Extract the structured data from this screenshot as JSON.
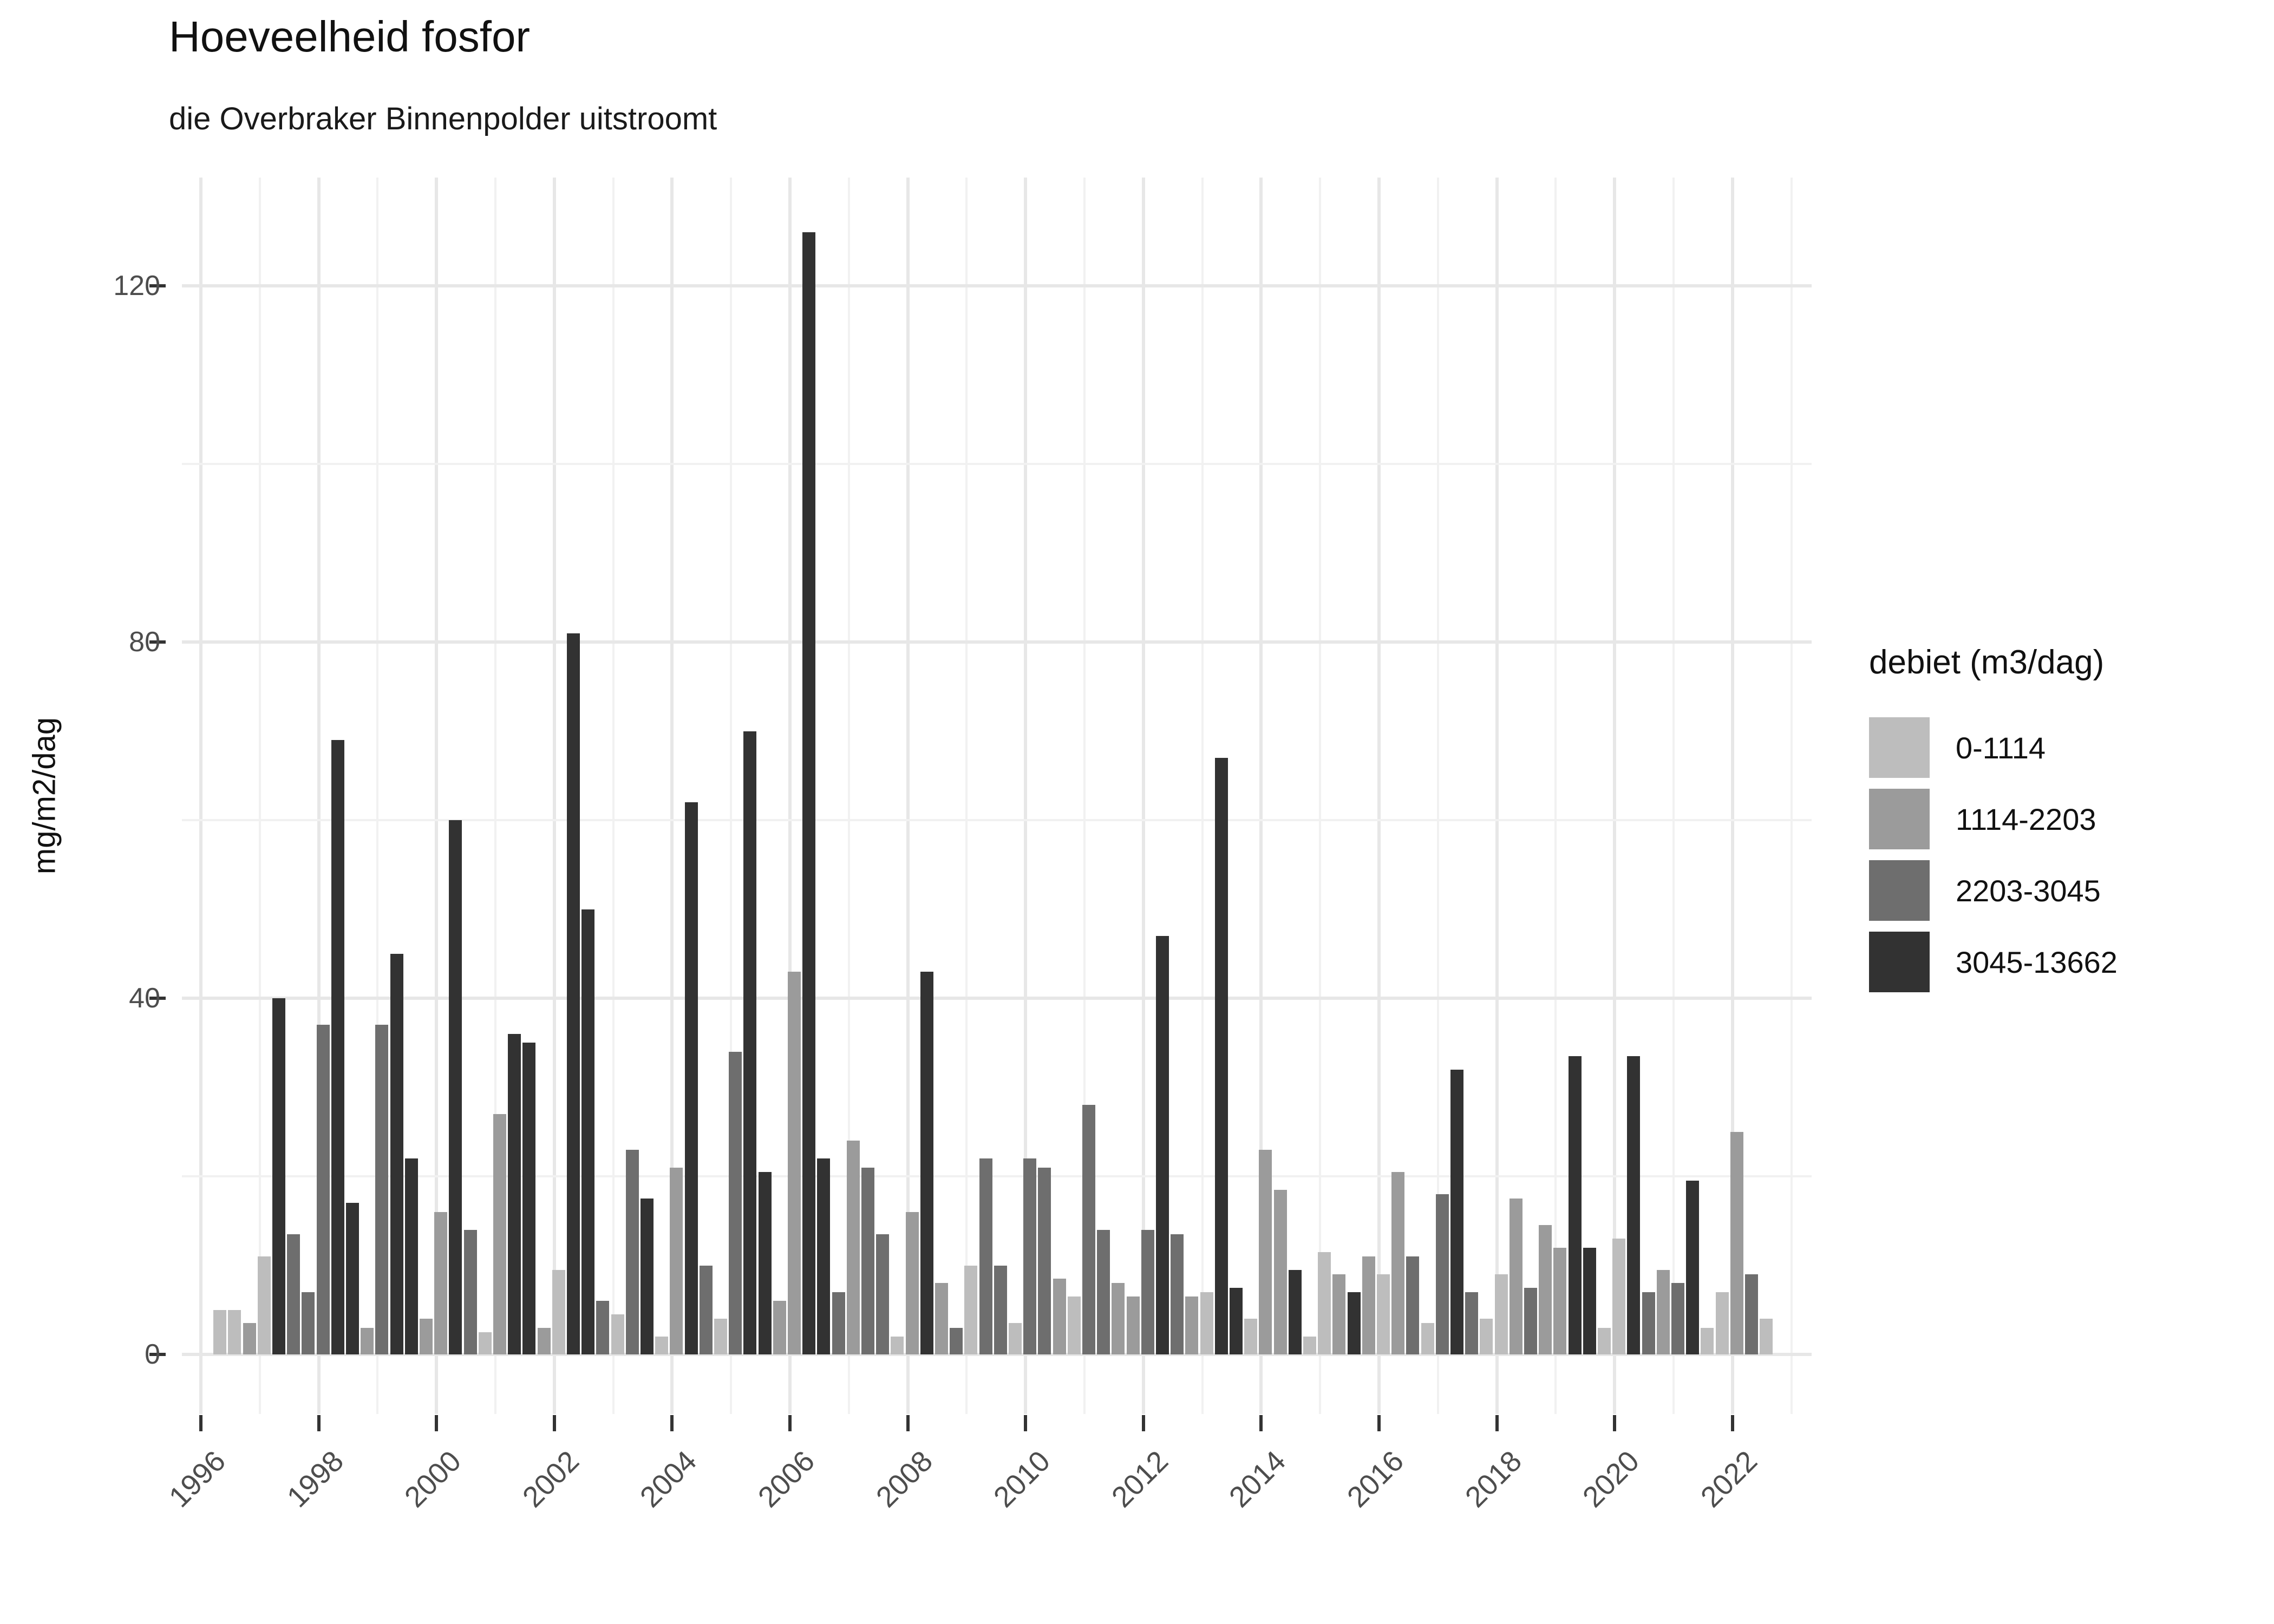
{
  "title": "Hoeveelheid fosfor",
  "subtitle": "die Overbraker Binnenpolder uitstroomt",
  "chart_data": {
    "type": "bar",
    "title": "Hoeveelheid fosfor",
    "subtitle": "die Overbraker Binnenpolder uitstroomt",
    "ylabel": "mg/m2/dag",
    "xlabel": "",
    "ylim": [
      0,
      132
    ],
    "yticks": [
      0,
      40,
      80,
      120
    ],
    "y_minor_gridlines": [
      20,
      60,
      100
    ],
    "xticks": [
      1996,
      1998,
      2000,
      2002,
      2004,
      2006,
      2008,
      2010,
      2012,
      2014,
      2016,
      2018,
      2020,
      2022
    ],
    "x_gridline_years_start": 1996,
    "x_gridline_years_end": 2023,
    "grid": "on",
    "legend_position": "right",
    "legend": {
      "title": "debiet (m3/dag)",
      "entries": [
        {
          "label": "0-1114",
          "color": "#bdbdbd"
        },
        {
          "label": "1114-2203",
          "color": "#9b9b9b"
        },
        {
          "label": "2203-3045",
          "color": "#6e6e6e"
        },
        {
          "label": "3045-13662",
          "color": "#323232"
        }
      ]
    },
    "value_unit": "mg/m2/dag",
    "bars_note": "one bar per quarter; debiet_class is an index into legend.entries",
    "bars": [
      {
        "year": 1996,
        "quarter": 2,
        "value": 5,
        "debiet_class": 0
      },
      {
        "year": 1996,
        "quarter": 3,
        "value": 5,
        "debiet_class": 0
      },
      {
        "year": 1996,
        "quarter": 4,
        "value": 3.5,
        "debiet_class": 1
      },
      {
        "year": 1997,
        "quarter": 1,
        "value": 11,
        "debiet_class": 0
      },
      {
        "year": 1997,
        "quarter": 2,
        "value": 40,
        "debiet_class": 3
      },
      {
        "year": 1997,
        "quarter": 3,
        "value": 13.5,
        "debiet_class": 2
      },
      {
        "year": 1997,
        "quarter": 4,
        "value": 7,
        "debiet_class": 2
      },
      {
        "year": 1998,
        "quarter": 1,
        "value": 37,
        "debiet_class": 2
      },
      {
        "year": 1998,
        "quarter": 2,
        "value": 69,
        "debiet_class": 3
      },
      {
        "year": 1998,
        "quarter": 3,
        "value": 17,
        "debiet_class": 3
      },
      {
        "year": 1998,
        "quarter": 4,
        "value": 3,
        "debiet_class": 1
      },
      {
        "year": 1999,
        "quarter": 1,
        "value": 37,
        "debiet_class": 2
      },
      {
        "year": 1999,
        "quarter": 2,
        "value": 45,
        "debiet_class": 3
      },
      {
        "year": 1999,
        "quarter": 3,
        "value": 22,
        "debiet_class": 3
      },
      {
        "year": 1999,
        "quarter": 4,
        "value": 4,
        "debiet_class": 1
      },
      {
        "year": 2000,
        "quarter": 1,
        "value": 16,
        "debiet_class": 1
      },
      {
        "year": 2000,
        "quarter": 2,
        "value": 60,
        "debiet_class": 3
      },
      {
        "year": 2000,
        "quarter": 3,
        "value": 14,
        "debiet_class": 2
      },
      {
        "year": 2000,
        "quarter": 4,
        "value": 2.5,
        "debiet_class": 0
      },
      {
        "year": 2001,
        "quarter": 1,
        "value": 27,
        "debiet_class": 1
      },
      {
        "year": 2001,
        "quarter": 2,
        "value": 36,
        "debiet_class": 3
      },
      {
        "year": 2001,
        "quarter": 3,
        "value": 35,
        "debiet_class": 3
      },
      {
        "year": 2001,
        "quarter": 4,
        "value": 3,
        "debiet_class": 1
      },
      {
        "year": 2002,
        "quarter": 1,
        "value": 9.5,
        "debiet_class": 0
      },
      {
        "year": 2002,
        "quarter": 2,
        "value": 81,
        "debiet_class": 3
      },
      {
        "year": 2002,
        "quarter": 3,
        "value": 50,
        "debiet_class": 3
      },
      {
        "year": 2002,
        "quarter": 4,
        "value": 6,
        "debiet_class": 2
      },
      {
        "year": 2003,
        "quarter": 1,
        "value": 4.5,
        "debiet_class": 0
      },
      {
        "year": 2003,
        "quarter": 2,
        "value": 23,
        "debiet_class": 2
      },
      {
        "year": 2003,
        "quarter": 3,
        "value": 17.5,
        "debiet_class": 3
      },
      {
        "year": 2003,
        "quarter": 4,
        "value": 2,
        "debiet_class": 0
      },
      {
        "year": 2004,
        "quarter": 1,
        "value": 21,
        "debiet_class": 1
      },
      {
        "year": 2004,
        "quarter": 2,
        "value": 62,
        "debiet_class": 3
      },
      {
        "year": 2004,
        "quarter": 3,
        "value": 10,
        "debiet_class": 2
      },
      {
        "year": 2004,
        "quarter": 4,
        "value": 4,
        "debiet_class": 0
      },
      {
        "year": 2005,
        "quarter": 1,
        "value": 34,
        "debiet_class": 2
      },
      {
        "year": 2005,
        "quarter": 2,
        "value": 70,
        "debiet_class": 3
      },
      {
        "year": 2005,
        "quarter": 3,
        "value": 20.5,
        "debiet_class": 3
      },
      {
        "year": 2005,
        "quarter": 4,
        "value": 6,
        "debiet_class": 1
      },
      {
        "year": 2006,
        "quarter": 1,
        "value": 43,
        "debiet_class": 1
      },
      {
        "year": 2006,
        "quarter": 2,
        "value": 126,
        "debiet_class": 3
      },
      {
        "year": 2006,
        "quarter": 3,
        "value": 22,
        "debiet_class": 3
      },
      {
        "year": 2006,
        "quarter": 4,
        "value": 7,
        "debiet_class": 2
      },
      {
        "year": 2007,
        "quarter": 1,
        "value": 24,
        "debiet_class": 1
      },
      {
        "year": 2007,
        "quarter": 2,
        "value": 21,
        "debiet_class": 2
      },
      {
        "year": 2007,
        "quarter": 3,
        "value": 13.5,
        "debiet_class": 2
      },
      {
        "year": 2007,
        "quarter": 4,
        "value": 2,
        "debiet_class": 0
      },
      {
        "year": 2008,
        "quarter": 1,
        "value": 16,
        "debiet_class": 1
      },
      {
        "year": 2008,
        "quarter": 2,
        "value": 43,
        "debiet_class": 3
      },
      {
        "year": 2008,
        "quarter": 3,
        "value": 8,
        "debiet_class": 1
      },
      {
        "year": 2008,
        "quarter": 4,
        "value": 3,
        "debiet_class": 2
      },
      {
        "year": 2009,
        "quarter": 1,
        "value": 10,
        "debiet_class": 0
      },
      {
        "year": 2009,
        "quarter": 2,
        "value": 22,
        "debiet_class": 2
      },
      {
        "year": 2009,
        "quarter": 3,
        "value": 10,
        "debiet_class": 2
      },
      {
        "year": 2009,
        "quarter": 4,
        "value": 3.5,
        "debiet_class": 0
      },
      {
        "year": 2010,
        "quarter": 1,
        "value": 22,
        "debiet_class": 2
      },
      {
        "year": 2010,
        "quarter": 2,
        "value": 21,
        "debiet_class": 2
      },
      {
        "year": 2010,
        "quarter": 3,
        "value": 8.5,
        "debiet_class": 1
      },
      {
        "year": 2010,
        "quarter": 4,
        "value": 6.5,
        "debiet_class": 0
      },
      {
        "year": 2011,
        "quarter": 1,
        "value": 28,
        "debiet_class": 2
      },
      {
        "year": 2011,
        "quarter": 2,
        "value": 14,
        "debiet_class": 2
      },
      {
        "year": 2011,
        "quarter": 3,
        "value": 8,
        "debiet_class": 1
      },
      {
        "year": 2011,
        "quarter": 4,
        "value": 6.5,
        "debiet_class": 1
      },
      {
        "year": 2012,
        "quarter": 1,
        "value": 14,
        "debiet_class": 2
      },
      {
        "year": 2012,
        "quarter": 2,
        "value": 47,
        "debiet_class": 3
      },
      {
        "year": 2012,
        "quarter": 3,
        "value": 13.5,
        "debiet_class": 2
      },
      {
        "year": 2012,
        "quarter": 4,
        "value": 6.5,
        "debiet_class": 1
      },
      {
        "year": 2013,
        "quarter": 1,
        "value": 7,
        "debiet_class": 0
      },
      {
        "year": 2013,
        "quarter": 2,
        "value": 67,
        "debiet_class": 3
      },
      {
        "year": 2013,
        "quarter": 3,
        "value": 7.5,
        "debiet_class": 3
      },
      {
        "year": 2013,
        "quarter": 4,
        "value": 4,
        "debiet_class": 0
      },
      {
        "year": 2014,
        "quarter": 1,
        "value": 23,
        "debiet_class": 1
      },
      {
        "year": 2014,
        "quarter": 2,
        "value": 18.5,
        "debiet_class": 1
      },
      {
        "year": 2014,
        "quarter": 3,
        "value": 9.5,
        "debiet_class": 3
      },
      {
        "year": 2014,
        "quarter": 4,
        "value": 2,
        "debiet_class": 0
      },
      {
        "year": 2015,
        "quarter": 1,
        "value": 11.5,
        "debiet_class": 0
      },
      {
        "year": 2015,
        "quarter": 2,
        "value": 9,
        "debiet_class": 1
      },
      {
        "year": 2015,
        "quarter": 3,
        "value": 7,
        "debiet_class": 3
      },
      {
        "year": 2015,
        "quarter": 4,
        "value": 11,
        "debiet_class": 1
      },
      {
        "year": 2016,
        "quarter": 1,
        "value": 9,
        "debiet_class": 0
      },
      {
        "year": 2016,
        "quarter": 2,
        "value": 20.5,
        "debiet_class": 1
      },
      {
        "year": 2016,
        "quarter": 3,
        "value": 11,
        "debiet_class": 2
      },
      {
        "year": 2016,
        "quarter": 4,
        "value": 3.5,
        "debiet_class": 0
      },
      {
        "year": 2017,
        "quarter": 1,
        "value": 18,
        "debiet_class": 2
      },
      {
        "year": 2017,
        "quarter": 2,
        "value": 32,
        "debiet_class": 3
      },
      {
        "year": 2017,
        "quarter": 3,
        "value": 7,
        "debiet_class": 2
      },
      {
        "year": 2017,
        "quarter": 4,
        "value": 4,
        "debiet_class": 0
      },
      {
        "year": 2018,
        "quarter": 1,
        "value": 9,
        "debiet_class": 0
      },
      {
        "year": 2018,
        "quarter": 2,
        "value": 17.5,
        "debiet_class": 1
      },
      {
        "year": 2018,
        "quarter": 3,
        "value": 7.5,
        "debiet_class": 2
      },
      {
        "year": 2018,
        "quarter": 4,
        "value": 14.5,
        "debiet_class": 1
      },
      {
        "year": 2019,
        "quarter": 1,
        "value": 12,
        "debiet_class": 1
      },
      {
        "year": 2019,
        "quarter": 2,
        "value": 33.5,
        "debiet_class": 3
      },
      {
        "year": 2019,
        "quarter": 3,
        "value": 12,
        "debiet_class": 3
      },
      {
        "year": 2019,
        "quarter": 4,
        "value": 3,
        "debiet_class": 0
      },
      {
        "year": 2020,
        "quarter": 1,
        "value": 13,
        "debiet_class": 0
      },
      {
        "year": 2020,
        "quarter": 2,
        "value": 33.5,
        "debiet_class": 3
      },
      {
        "year": 2020,
        "quarter": 3,
        "value": 7,
        "debiet_class": 2
      },
      {
        "year": 2020,
        "quarter": 4,
        "value": 9.5,
        "debiet_class": 1
      },
      {
        "year": 2021,
        "quarter": 1,
        "value": 8,
        "debiet_class": 2
      },
      {
        "year": 2021,
        "quarter": 2,
        "value": 19.5,
        "debiet_class": 3
      },
      {
        "year": 2021,
        "quarter": 3,
        "value": 3,
        "debiet_class": 0
      },
      {
        "year": 2021,
        "quarter": 4,
        "value": 7,
        "debiet_class": 0
      },
      {
        "year": 2022,
        "quarter": 1,
        "value": 25,
        "debiet_class": 1
      },
      {
        "year": 2022,
        "quarter": 2,
        "value": 9,
        "debiet_class": 2
      },
      {
        "year": 2022,
        "quarter": 3,
        "value": 4,
        "debiet_class": 0
      }
    ]
  }
}
